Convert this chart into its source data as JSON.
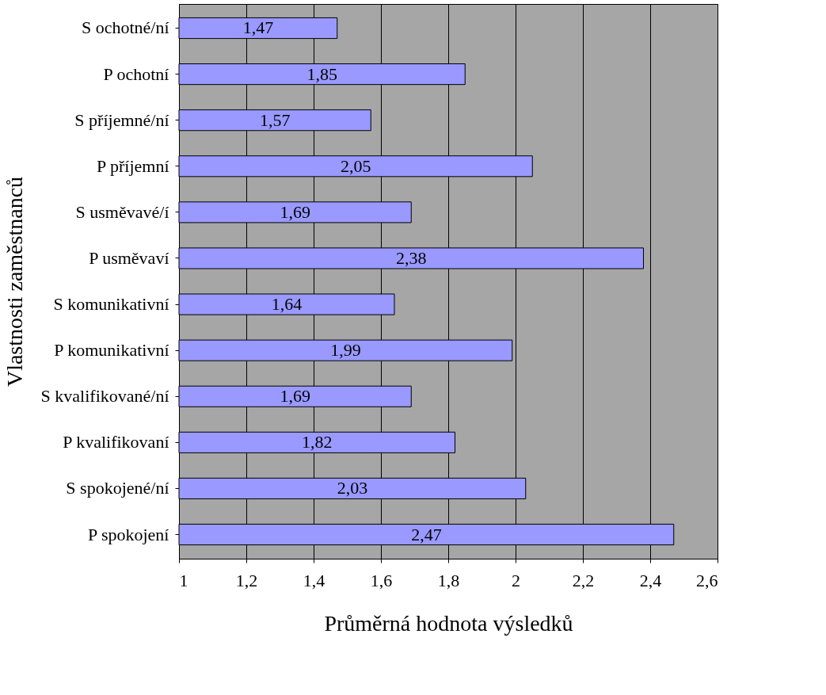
{
  "chart_data": {
    "type": "bar",
    "orientation": "horizontal",
    "xlabel": "Průměrná hodnota výsledků",
    "ylabel": "Vlastnosti zaměstnanců",
    "categories": [
      "S ochotné/ní",
      "P ochotní",
      "S příjemné/ní",
      "P příjemní",
      "S usměvavé/í",
      "P usměvaví",
      "S komunikativní",
      "P komunikativní",
      "S kvalifikované/ní",
      "P kvalifikovaní",
      "S spokojené/ní",
      "P spokojení"
    ],
    "values": [
      1.47,
      1.85,
      1.57,
      2.05,
      1.69,
      2.38,
      1.64,
      1.99,
      1.69,
      1.82,
      2.03,
      2.47
    ],
    "value_labels": [
      "1,47",
      "1,85",
      "1,57",
      "2,05",
      "1,69",
      "2,38",
      "1,64",
      "1,99",
      "1,69",
      "1,82",
      "2,03",
      "2,47"
    ],
    "color": "#9999ff",
    "xlim": [
      1,
      2.6
    ],
    "xticks": [
      1,
      {
        "value": 1.2,
        "label": "1,2"
      },
      {
        "value": 1.4,
        "label": "1,4"
      },
      {
        "value": 1.6,
        "label": "1,6"
      },
      {
        "value": 1.8,
        "label": "1,8"
      },
      2,
      {
        "value": 2.2,
        "label": "2,2"
      },
      {
        "value": 2.4,
        "label": "2,4"
      },
      {
        "value": 2.6,
        "label": "2,6"
      }
    ],
    "grid": "x"
  }
}
